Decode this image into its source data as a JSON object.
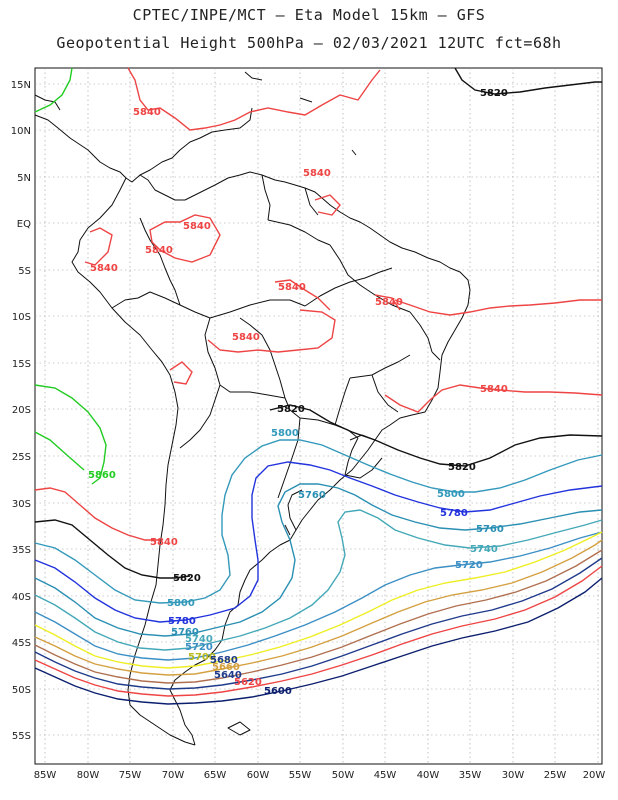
{
  "header": {
    "line1": "CPTEC/INPE/MCT –  Eta Model 15km – GFS",
    "line2": "Geopotential Height 500hPa – 02/03/2021 12UTC fct=68h"
  },
  "axes": {
    "lat_labels": [
      "15N",
      "10N",
      "5N",
      "EQ",
      "5S",
      "10S",
      "15S",
      "20S",
      "25S",
      "30S",
      "35S",
      "40S",
      "45S",
      "50S",
      "55S"
    ],
    "lon_labels": [
      "85W",
      "80W",
      "75W",
      "70W",
      "65W",
      "60W",
      "55W",
      "50W",
      "45W",
      "40W",
      "35W",
      "30W",
      "25W",
      "20W"
    ]
  },
  "contours": {
    "c5840": "5840",
    "c5820": "5820",
    "c5800": "5800",
    "c5780": "5780",
    "c5760": "5760",
    "c5740": "5740",
    "c5720": "5720",
    "c5700": "5700",
    "c5680": "5680",
    "c5660": "5660",
    "c5640": "5640",
    "c5620": "5620",
    "c5600": "5600",
    "c5860": "5860"
  },
  "colors": {
    "c5860": "#22cc22",
    "c5840": "#ee4444",
    "c5820": "#111111",
    "c5800": "#3399bb",
    "c5780": "#2233dd",
    "c5760": "#2a8fb3",
    "c5740": "#44a8b8",
    "c5720": "#3c8fc4",
    "c5700": "#eeee22",
    "c5680": "#d4a040",
    "c5660": "#b07050",
    "c5640": "#1e3a8a",
    "c5620": "#ee4444",
    "c5600": "#0b1f6e",
    "coast": "#111111",
    "grid": "#999999"
  }
}
